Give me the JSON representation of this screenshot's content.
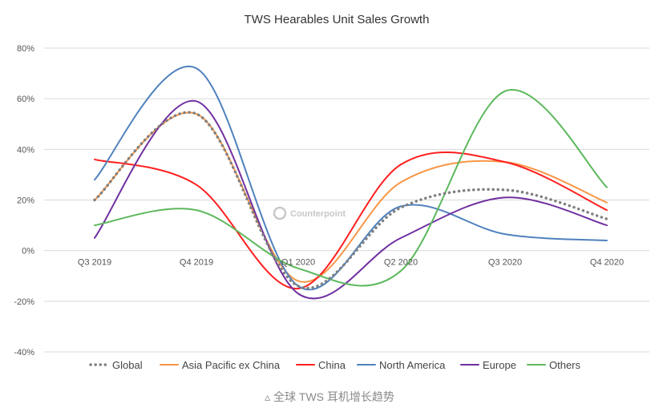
{
  "caption": "▵ 全球 TWS 耳机增长趋势",
  "chart_data": {
    "type": "line",
    "title": "TWS Hearables Unit Sales Growth",
    "xlabel": "",
    "ylabel": "",
    "categories": [
      "Q3 2019",
      "Q4 2019",
      "Q1 2020",
      "Q2 2020",
      "Q3 2020",
      "Q4 2020"
    ],
    "ylim": [
      -40,
      80
    ],
    "yticks": [
      -40,
      -20,
      0,
      20,
      40,
      60,
      80
    ],
    "ytick_labels": [
      "-40%",
      "-20%",
      "0%",
      "20%",
      "40%",
      "60%",
      "80%"
    ],
    "grid": true,
    "legend": "bottom",
    "watermark": "Counterpoint",
    "series": [
      {
        "name": "Global",
        "color": "#808080",
        "style": "dotted",
        "values": [
          20,
          54,
          -14,
          17,
          24,
          12.5
        ]
      },
      {
        "name": "Asia Pacific ex China",
        "color": "#f79646",
        "style": "solid",
        "values": [
          20,
          54,
          -12,
          27,
          35,
          19
        ]
      },
      {
        "name": "China",
        "color": "#ff1f1f",
        "style": "solid",
        "values": [
          36,
          26,
          -15,
          34,
          35,
          16
        ]
      },
      {
        "name": "North America",
        "color": "#4f81bd",
        "style": "solid",
        "values": [
          28,
          72,
          -14,
          17.5,
          6.5,
          4
        ]
      },
      {
        "name": "Europe",
        "color": "#7030a0",
        "style": "solid",
        "values": [
          5,
          59,
          -17,
          5,
          21,
          10
        ]
      },
      {
        "name": "Others",
        "color": "#5cb85c",
        "style": "solid",
        "values": [
          10,
          16,
          -7,
          -8,
          63,
          25
        ]
      }
    ]
  }
}
